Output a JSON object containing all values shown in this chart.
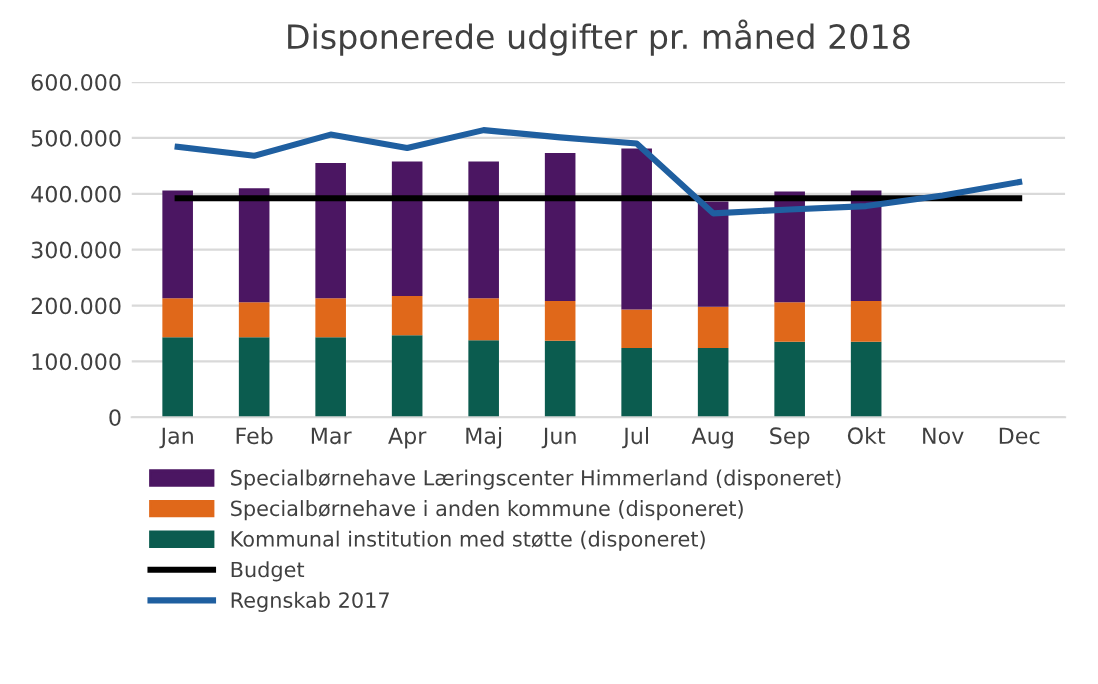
{
  "chart_data": {
    "type": "bar",
    "title": "Disponerede udgifter pr. måned 2018",
    "stacked": true,
    "categories": [
      "Jan",
      "Feb",
      "Mar",
      "Apr",
      "Maj",
      "Jun",
      "Jul",
      "Aug",
      "Sep",
      "Okt",
      "Nov",
      "Dec"
    ],
    "series": [
      {
        "name": "Kommunal institution med støtte (disponeret)",
        "color": "#0b5c4f",
        "values": [
          143000,
          143000,
          143000,
          147000,
          138000,
          137000,
          124000,
          124000,
          135000,
          135000,
          null,
          null
        ]
      },
      {
        "name": "Specialbørnehave i anden kommune (disponeret)",
        "color": "#e0681a",
        "values": [
          70000,
          63000,
          70000,
          70000,
          75000,
          71000,
          69000,
          74000,
          71000,
          73000,
          null,
          null
        ]
      },
      {
        "name": "Specialbørnehave Læringscenter Himmerland (disponeret)",
        "color": "#4b1662",
        "values": [
          193000,
          204000,
          242000,
          241000,
          245000,
          265000,
          288000,
          188000,
          198000,
          198000,
          null,
          null
        ]
      },
      {
        "name": "Budget",
        "type": "line",
        "color": "#000000",
        "values": [
          392000,
          392000,
          392000,
          392000,
          392000,
          392000,
          392000,
          392000,
          392000,
          392000,
          392000,
          392000
        ]
      },
      {
        "name": "Regnskab 2017",
        "type": "line",
        "color": "#1f5fa0",
        "values": [
          484000,
          468000,
          506000,
          482000,
          514000,
          501000,
          490000,
          365000,
          372000,
          378000,
          397000,
          421000
        ]
      }
    ],
    "ylim": [
      0,
      600000
    ],
    "yticks": [
      0,
      {
        "value": 100000,
        "label": "100.000"
      },
      {
        "value": 200000,
        "label": "200.000"
      },
      {
        "value": 300000,
        "label": "300.000"
      },
      {
        "value": 400000,
        "label": "400.000"
      },
      {
        "value": 500000,
        "label": "500.000"
      },
      {
        "value": 600000,
        "label": "600.000"
      }
    ],
    "grid": "y",
    "legend": "bottom",
    "marker": "none"
  }
}
